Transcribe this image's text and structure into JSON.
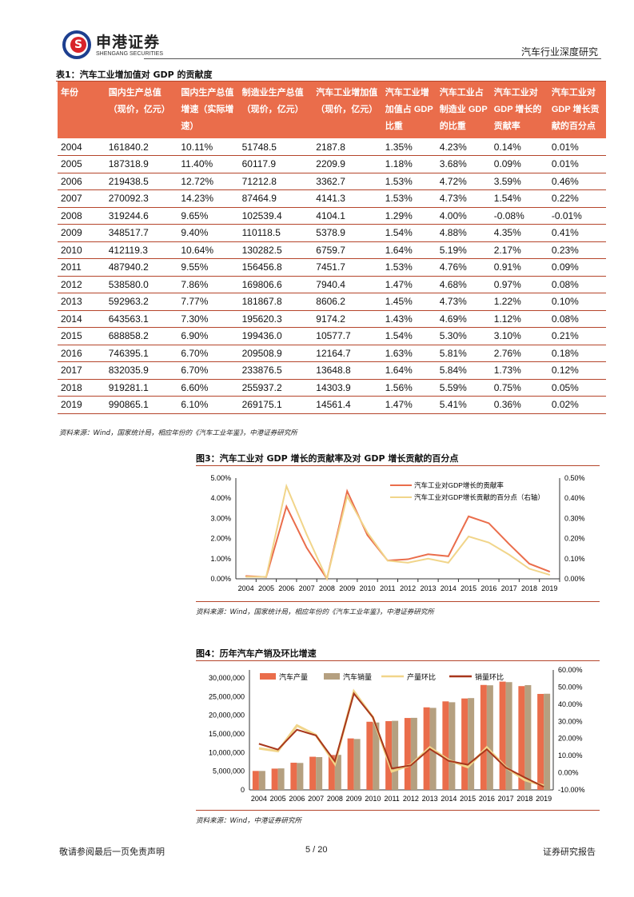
{
  "header": {
    "logo_cn": "申港证券",
    "logo_en": "SHENGANG SECURITIES",
    "report_type": "汽车行业深度研究"
  },
  "table1": {
    "caption": "表1：汽车工业增加值对 GDP 的贡献度",
    "columns": [
      "年份",
      "国内生产总值（现价，亿元）",
      "国内生产总值增速（实际增速）",
      "制造业生产总值（现价，亿元）",
      "汽车工业增加值（现价，亿元）",
      "汽车工业增加值占 GDP 比重",
      "汽车工业占制造业 GDP 的比重",
      "汽车工业对 GDP 增长的贡献率",
      "汽车工业对 GDP 增长贡献的百分点"
    ],
    "rows": [
      [
        "2004",
        "161840.2",
        "10.11%",
        "51748.5",
        "2187.8",
        "1.35%",
        "4.23%",
        "0.14%",
        "0.01%"
      ],
      [
        "2005",
        "187318.9",
        "11.40%",
        "60117.9",
        "2209.9",
        "1.18%",
        "3.68%",
        "0.09%",
        "0.01%"
      ],
      [
        "2006",
        "219438.5",
        "12.72%",
        "71212.8",
        "3362.7",
        "1.53%",
        "4.72%",
        "3.59%",
        "0.46%"
      ],
      [
        "2007",
        "270092.3",
        "14.23%",
        "87464.9",
        "4141.3",
        "1.53%",
        "4.73%",
        "1.54%",
        "0.22%"
      ],
      [
        "2008",
        "319244.6",
        "9.65%",
        "102539.4",
        "4104.1",
        "1.29%",
        "4.00%",
        "-0.08%",
        "-0.01%"
      ],
      [
        "2009",
        "348517.7",
        "9.40%",
        "110118.5",
        "5378.9",
        "1.54%",
        "4.88%",
        "4.35%",
        "0.41%"
      ],
      [
        "2010",
        "412119.3",
        "10.64%",
        "130282.5",
        "6759.7",
        "1.64%",
        "5.19%",
        "2.17%",
        "0.23%"
      ],
      [
        "2011",
        "487940.2",
        "9.55%",
        "156456.8",
        "7451.7",
        "1.53%",
        "4.76%",
        "0.91%",
        "0.09%"
      ],
      [
        "2012",
        "538580.0",
        "7.86%",
        "169806.6",
        "7940.4",
        "1.47%",
        "4.68%",
        "0.97%",
        "0.08%"
      ],
      [
        "2013",
        "592963.2",
        "7.77%",
        "181867.8",
        "8606.2",
        "1.45%",
        "4.73%",
        "1.22%",
        "0.10%"
      ],
      [
        "2014",
        "643563.1",
        "7.30%",
        "195620.3",
        "9174.2",
        "1.43%",
        "4.69%",
        "1.12%",
        "0.08%"
      ],
      [
        "2015",
        "688858.2",
        "6.90%",
        "199436.0",
        "10577.7",
        "1.54%",
        "5.30%",
        "3.10%",
        "0.21%"
      ],
      [
        "2016",
        "746395.1",
        "6.70%",
        "209508.9",
        "12164.7",
        "1.63%",
        "5.81%",
        "2.76%",
        "0.18%"
      ],
      [
        "2017",
        "832035.9",
        "6.70%",
        "233876.5",
        "13648.8",
        "1.64%",
        "5.84%",
        "1.73%",
        "0.12%"
      ],
      [
        "2018",
        "919281.1",
        "6.60%",
        "255937.2",
        "14303.9",
        "1.56%",
        "5.59%",
        "0.75%",
        "0.05%"
      ],
      [
        "2019",
        "990865.1",
        "6.10%",
        "269175.1",
        "14561.4",
        "1.47%",
        "5.41%",
        "0.36%",
        "0.02%"
      ]
    ],
    "source": "资料来源：Wind，国家统计局，相应年份的《汽车工业年鉴》，中港证券研究所"
  },
  "chart_data": [
    {
      "type": "line",
      "title": "图3：汽车工业对 GDP 增长的贡献率及对 GDP 增长贡献的百分点",
      "categories": [
        "2004",
        "2005",
        "2006",
        "2007",
        "2008",
        "2009",
        "2010",
        "2011",
        "2012",
        "2013",
        "2014",
        "2015",
        "2016",
        "2017",
        "2018",
        "2019"
      ],
      "ylim": [
        0,
        5
      ],
      "y2lim": [
        0,
        0.5
      ],
      "yticks": [
        "0.00%",
        "1.00%",
        "2.00%",
        "3.00%",
        "4.00%",
        "5.00%"
      ],
      "y2ticks": [
        "0.00%",
        "0.10%",
        "0.20%",
        "0.30%",
        "0.40%",
        "0.50%"
      ],
      "legend_position": "top-right",
      "series": [
        {
          "name": "汽车工业对GDP增长的贡献率",
          "axis": "left",
          "color": "#ea6d4b",
          "values": [
            0.14,
            0.09,
            3.59,
            1.54,
            -0.08,
            4.35,
            2.17,
            0.91,
            0.97,
            1.22,
            1.12,
            3.1,
            2.76,
            1.73,
            0.75,
            0.36
          ]
        },
        {
          "name": "汽车工业对GDP增长贡献的百分点（右轴）",
          "axis": "right",
          "color": "#f1d58a",
          "values": [
            0.01,
            0.01,
            0.46,
            0.22,
            -0.01,
            0.41,
            0.23,
            0.09,
            0.08,
            0.1,
            0.08,
            0.21,
            0.18,
            0.12,
            0.05,
            0.02
          ]
        }
      ],
      "source": "资料来源：Wind，国家统计局，相应年份的《汽车工业年鉴》，中港证券研究所"
    },
    {
      "type": "bar",
      "title": "图4：历年汽车产销及环比增速",
      "categories": [
        "2004",
        "2005",
        "2006",
        "2007",
        "2008",
        "2009",
        "2010",
        "2011",
        "2012",
        "2013",
        "2014",
        "2015",
        "2016",
        "2017",
        "2018",
        "2019"
      ],
      "ylim": [
        0,
        30000000
      ],
      "y2lim": [
        -10,
        60
      ],
      "yticks": [
        "0",
        "5,000,000",
        "10,000,000",
        "15,000,000",
        "20,000,000",
        "25,000,000",
        "30,000,000"
      ],
      "y2ticks": [
        "-10.00%",
        "0.00%",
        "10.00%",
        "20.00%",
        "30.00%",
        "40.00%",
        "50.00%",
        "60.00%"
      ],
      "legend_position": "top",
      "series": [
        {
          "name": "汽车产量",
          "kind": "bar",
          "color": "#ea6d4b",
          "values": [
            5070000,
            5700000,
            7280000,
            8880000,
            9350000,
            13790000,
            18260000,
            18420000,
            19270000,
            22120000,
            23720000,
            24500000,
            28120000,
            29020000,
            27810000,
            25720000
          ]
        },
        {
          "name": "汽车销量",
          "kind": "bar",
          "color": "#b5a080",
          "values": [
            5070000,
            5760000,
            7220000,
            8790000,
            9380000,
            13640000,
            18060000,
            18510000,
            19310000,
            21980000,
            23490000,
            24600000,
            28030000,
            28880000,
            28080000,
            25770000
          ]
        },
        {
          "name": "产量环比",
          "kind": "line",
          "axis": "right",
          "color": "#f1d58a",
          "values": [
            14.2,
            12.6,
            27.6,
            22.0,
            5.2,
            47.5,
            32.4,
            0.8,
            4.6,
            14.8,
            7.3,
            3.3,
            14.8,
            3.2,
            -4.2,
            -7.5
          ]
        },
        {
          "name": "销量环比",
          "kind": "line",
          "axis": "right",
          "color": "#a8371c",
          "values": [
            16.9,
            13.5,
            25.1,
            21.8,
            6.7,
            46.2,
            32.4,
            2.5,
            4.3,
            13.9,
            6.9,
            4.7,
            13.7,
            3.0,
            -2.8,
            -8.2
          ]
        }
      ],
      "source": "资料来源：Wind，中港证券研究所"
    }
  ],
  "footer": {
    "left": "敬请参阅最后一页免责声明",
    "page": "5 / 20",
    "right": "证券研究报告"
  }
}
